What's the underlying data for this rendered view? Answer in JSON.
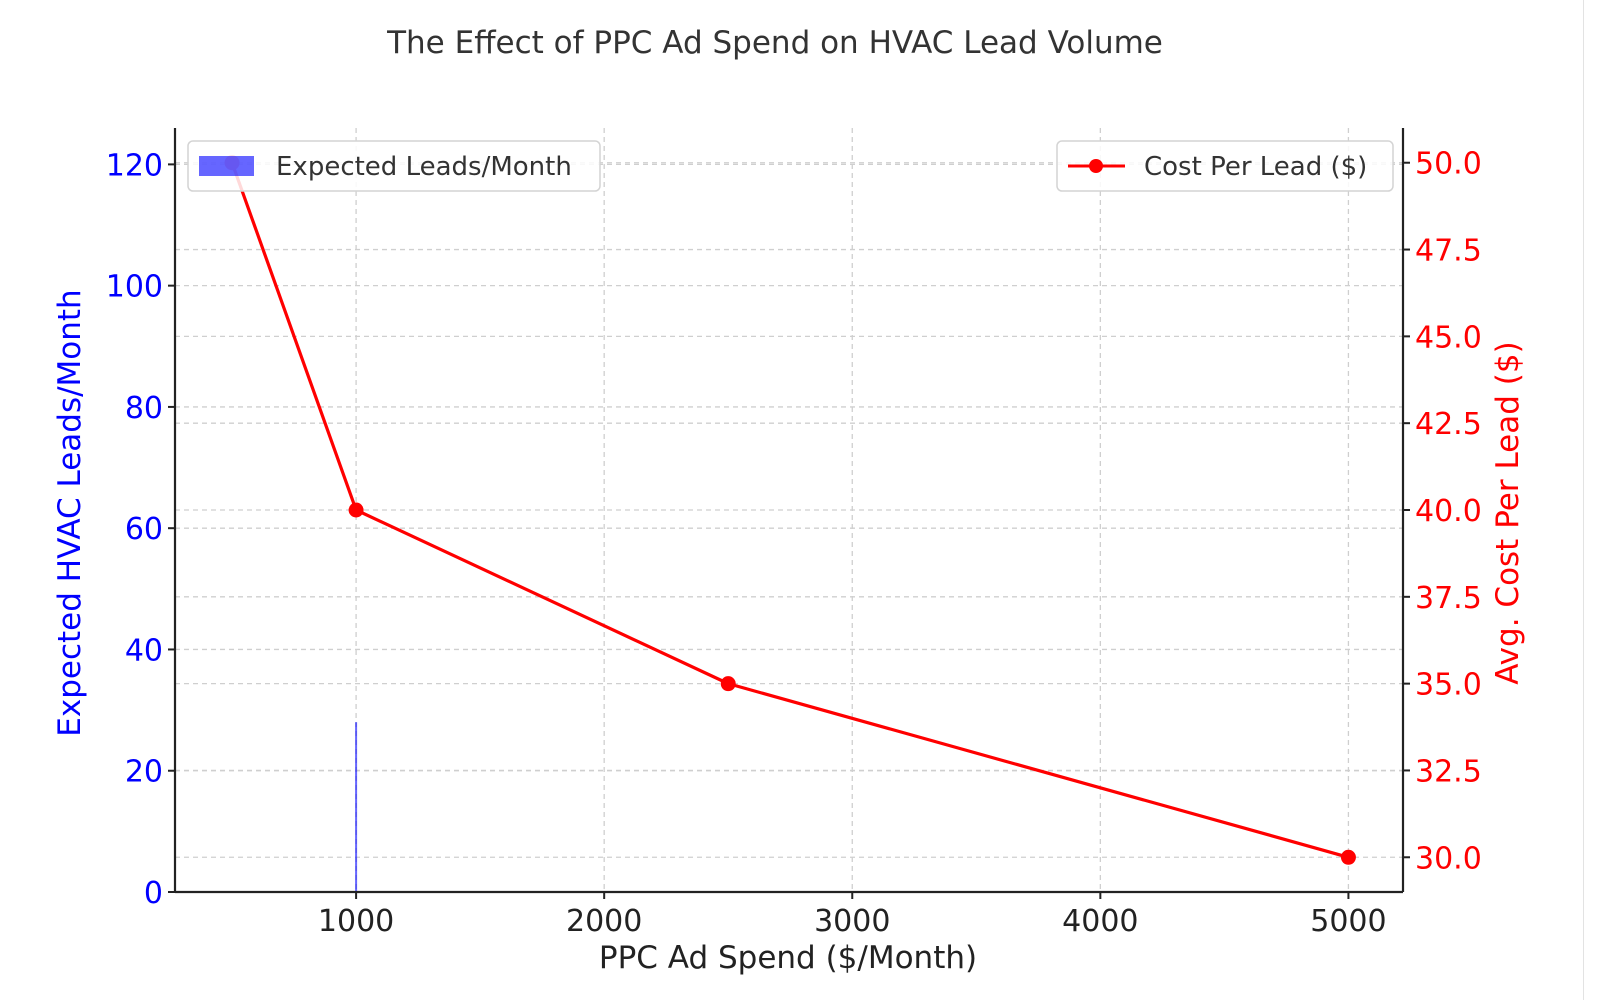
{
  "chart_data": {
    "type": "line",
    "title": "The Effect of PPC Ad Spend on HVAC Lead Volume",
    "xlabel": "PPC Ad Spend ($/Month)",
    "ylabel_left": "Expected HVAC Leads/Month",
    "ylabel_right": "Avg. Cost Per Lead ($)",
    "xlim": [
      270,
      5220
    ],
    "ylim_left": [
      0,
      126
    ],
    "ylim_right": [
      29.0,
      51.0
    ],
    "x_ticks": [
      {
        "value": 1000,
        "label": "1000"
      },
      {
        "value": 2000,
        "label": "2000"
      },
      {
        "value": 3000,
        "label": "3000"
      },
      {
        "value": 4000,
        "label": "4000"
      },
      {
        "value": 5000,
        "label": "5000"
      }
    ],
    "y_left_ticks": [
      {
        "value": 0,
        "label": "0"
      },
      {
        "value": 20,
        "label": "20"
      },
      {
        "value": 40,
        "label": "40"
      },
      {
        "value": 60,
        "label": "60"
      },
      {
        "value": 80,
        "label": "80"
      },
      {
        "value": 100,
        "label": "100"
      },
      {
        "value": 120,
        "label": "120"
      }
    ],
    "y_right_ticks": [
      {
        "value": 30.0,
        "label": "30.0"
      },
      {
        "value": 32.5,
        "label": "32.5"
      },
      {
        "value": 35.0,
        "label": "35.0"
      },
      {
        "value": 37.5,
        "label": "37.5"
      },
      {
        "value": 40.0,
        "label": "40.0"
      },
      {
        "value": 42.5,
        "label": "42.5"
      },
      {
        "value": 45.0,
        "label": "45.0"
      },
      {
        "value": 47.5,
        "label": "47.5"
      },
      {
        "value": 50.0,
        "label": "50.0"
      }
    ],
    "grid": true,
    "series": [
      {
        "name": "Expected Leads/Month",
        "type": "bar",
        "axis": "left",
        "color": "#0000ff",
        "points": [
          {
            "x": 1000,
            "y": 28
          }
        ]
      },
      {
        "name": "Cost Per Lead ($)",
        "type": "line",
        "axis": "right",
        "color": "#ff0000",
        "marker": "circle",
        "points": [
          {
            "x": 500,
            "y": 50.0
          },
          {
            "x": 1000,
            "y": 40.0
          },
          {
            "x": 2500,
            "y": 35.0
          },
          {
            "x": 5000,
            "y": 30.0
          }
        ]
      }
    ],
    "legends": [
      {
        "position": "top-left",
        "entry": "Expected Leads/Month"
      },
      {
        "position": "top-right",
        "entry": "Cost Per Lead ($)"
      }
    ]
  }
}
